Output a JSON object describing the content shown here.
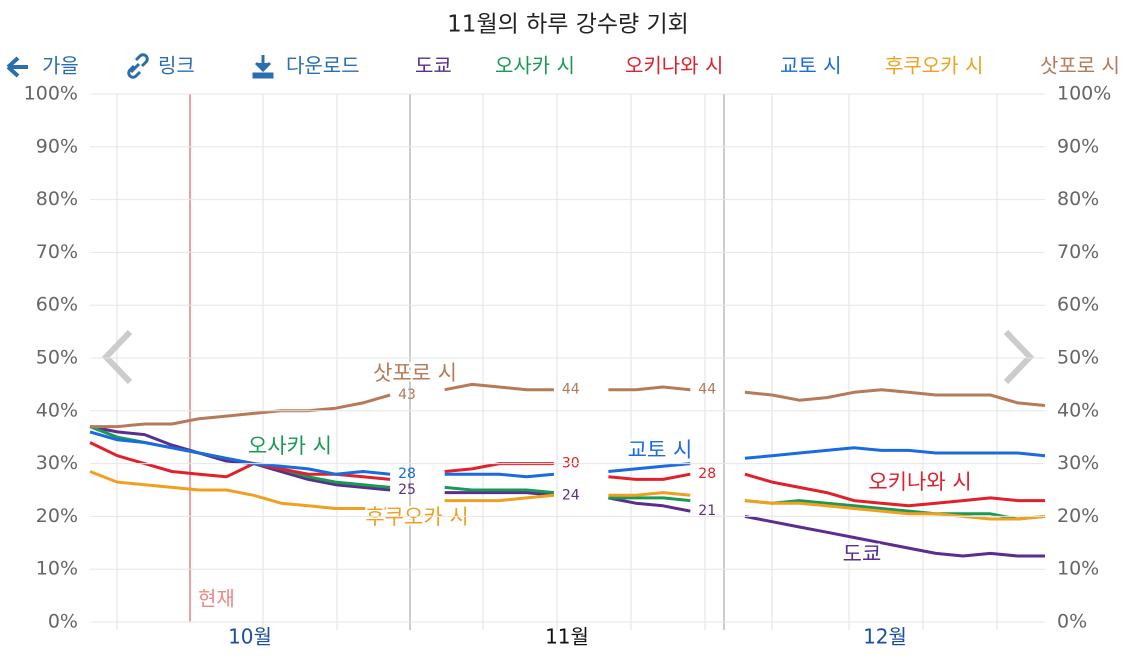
{
  "nav": {
    "back": "가을",
    "link": "링크",
    "download": "다운로드"
  },
  "chart_data": {
    "type": "line",
    "title": "11월의 하루 강수량 기회",
    "x_labels": [
      "10월",
      "11월",
      "12월"
    ],
    "current_label": "현재",
    "ylim": [
      0,
      100
    ],
    "yticks": [
      {
        "value": 0,
        "label": "0%"
      },
      {
        "value": 10,
        "label": "10%"
      },
      {
        "value": 20,
        "label": "20%"
      },
      {
        "value": 30,
        "label": "30%"
      },
      {
        "value": 40,
        "label": "40%"
      },
      {
        "value": 50,
        "label": "50%"
      },
      {
        "value": 60,
        "label": "60%"
      },
      {
        "value": 70,
        "label": "70%"
      },
      {
        "value": 80,
        "label": "80%"
      },
      {
        "value": 90,
        "label": "90%"
      },
      {
        "value": 100,
        "label": "100%"
      }
    ],
    "grid": true,
    "series": [
      {
        "name": "도쿄",
        "color": "#5a2d8e",
        "values": [
          37,
          36,
          35.5,
          33.5,
          32,
          30.5,
          30,
          28.5,
          27,
          26,
          25.5,
          25,
          null,
          24.5,
          24.5,
          24.5,
          24.5,
          24,
          null,
          23.5,
          22.5,
          22,
          21,
          null,
          20,
          19,
          18,
          17,
          16,
          15,
          14,
          13,
          12.5,
          13,
          12.5,
          12.5
        ],
        "value_labels": [
          null,
          null,
          null,
          null,
          null,
          null,
          null,
          null,
          null,
          null,
          null,
          "25",
          null,
          null,
          null,
          null,
          null,
          "24",
          null,
          null,
          null,
          null,
          "21",
          null,
          null,
          null,
          null,
          null,
          null,
          null,
          null,
          null,
          null,
          null,
          null,
          null
        ]
      },
      {
        "name": "오사카 시",
        "color": "#189a56",
        "values": [
          37,
          35,
          34,
          33,
          32,
          31,
          30,
          29,
          27.5,
          26.5,
          26,
          25.5,
          null,
          25.5,
          25,
          25,
          25,
          24.5,
          null,
          23.5,
          23.5,
          23.5,
          23,
          null,
          23,
          22.5,
          23,
          22.5,
          22,
          21.5,
          21,
          20.5,
          20.5,
          20.5,
          19.5,
          20
        ]
      },
      {
        "name": "오키나와 시",
        "color": "#e0202a",
        "values": [
          34,
          31.5,
          30,
          28.5,
          28,
          27.5,
          30,
          29,
          28,
          28,
          27.5,
          27,
          null,
          28.5,
          29,
          30,
          30,
          30,
          null,
          27.5,
          27,
          27,
          28,
          null,
          28,
          26.5,
          25.5,
          24.5,
          23,
          22.5,
          22,
          22.5,
          23,
          23.5,
          23,
          23
        ],
        "value_labels": [
          null,
          null,
          null,
          null,
          null,
          null,
          null,
          null,
          null,
          null,
          null,
          null,
          null,
          null,
          null,
          null,
          null,
          "30",
          null,
          null,
          null,
          null,
          "28",
          null,
          null,
          null,
          null,
          null,
          null,
          null,
          null,
          null,
          null,
          null,
          null,
          null
        ]
      },
      {
        "name": "교토 시",
        "color": "#1a6ae0",
        "values": [
          36,
          34.5,
          34,
          33,
          32,
          31,
          30,
          29.5,
          29,
          28,
          28.5,
          28,
          null,
          28,
          28,
          28,
          27.5,
          28,
          null,
          28.5,
          29,
          29.5,
          30,
          null,
          31,
          31.5,
          32,
          32.5,
          33,
          32.5,
          32.5,
          32,
          32,
          32,
          32,
          31.5
        ],
        "value_labels": [
          null,
          null,
          null,
          null,
          null,
          null,
          null,
          null,
          null,
          null,
          null,
          "28",
          null,
          null,
          null,
          null,
          null,
          null,
          null,
          null,
          null,
          null,
          null,
          null,
          null,
          null,
          null,
          null,
          null,
          null,
          null,
          null,
          null,
          null,
          null,
          null
        ]
      },
      {
        "name": "후쿠오카 시",
        "color": "#f0a020",
        "values": [
          28.5,
          26.5,
          26,
          25.5,
          25,
          25,
          24,
          22.5,
          22,
          21.5,
          21.5,
          21.5,
          null,
          23,
          23,
          23,
          23.5,
          24,
          null,
          24,
          24,
          24.5,
          24,
          null,
          23,
          22.5,
          22.5,
          22,
          21.5,
          21,
          20.5,
          20.5,
          20,
          19.5,
          19.5,
          20
        ]
      },
      {
        "name": "삿포로 시",
        "color": "#b57a5a",
        "values": [
          37,
          37,
          37.5,
          37.5,
          38.5,
          39,
          39.5,
          40,
          40,
          40.5,
          41.5,
          43,
          null,
          44,
          45,
          44.5,
          44,
          44,
          null,
          44,
          44,
          44.5,
          44,
          null,
          43.5,
          43,
          42,
          42.5,
          43.5,
          44,
          43.5,
          43,
          43,
          43,
          41.5,
          41
        ],
        "value_labels": [
          null,
          null,
          null,
          null,
          null,
          null,
          null,
          null,
          null,
          null,
          null,
          "43",
          null,
          null,
          null,
          null,
          null,
          "44",
          null,
          null,
          null,
          null,
          "44",
          null,
          null,
          null,
          null,
          null,
          null,
          null,
          null,
          null,
          null,
          null,
          null,
          null
        ]
      }
    ]
  }
}
